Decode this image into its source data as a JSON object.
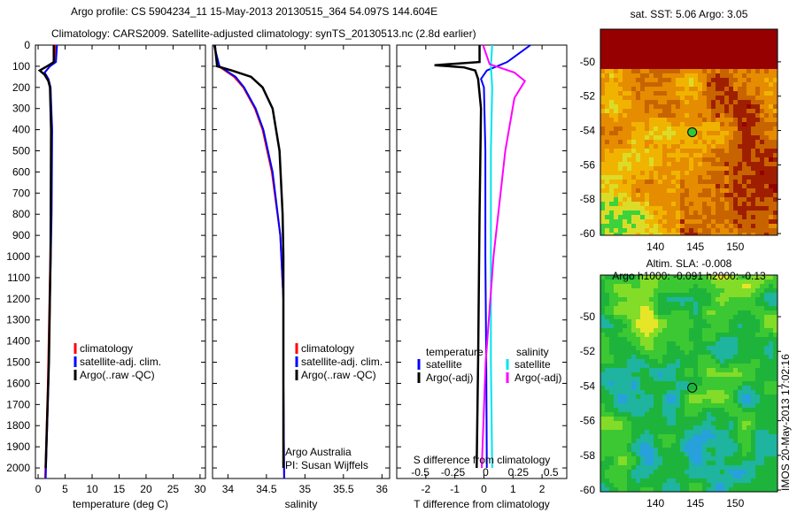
{
  "title_line1": "Argo profile: CS 5904234_11 15-May-2013 20130515_364 54.097S 144.604E",
  "title_line2": "Climatology: CARS2009. Satellite-adjusted climatology: synTS_20130513.nc (2.8d earlier)",
  "stamp": "IMOS 20-May-2013 17:02:16",
  "colors": {
    "climatology": "#ff0000",
    "satellite": "#0000ff",
    "argo": "#000000",
    "sal_satellite": "#00e5ee",
    "sal_argo": "#ff00ff"
  },
  "chart_data": [
    {
      "type": "line",
      "name": "temperature",
      "xlabel": "temperature (deg C)",
      "xlim": [
        -0.5,
        31
      ],
      "ylim": [
        2050,
        0
      ],
      "xticks": [
        0,
        5,
        10,
        15,
        20,
        25,
        30
      ],
      "yticks": [
        0,
        100,
        200,
        300,
        400,
        500,
        600,
        700,
        800,
        900,
        1000,
        1100,
        1200,
        1300,
        1400,
        1500,
        1600,
        1700,
        1800,
        1900,
        2000
      ],
      "legend": [
        "climatology",
        "satellite-adj. clim.",
        "Argo(..raw -QC)"
      ],
      "series": [
        {
          "name": "climatology",
          "color": "#ff0000",
          "depth": [
            0,
            80,
            100,
            130,
            160,
            200,
            400,
            800,
            1200,
            1600,
            2050
          ],
          "values": [
            3.2,
            3.1,
            2.2,
            1.2,
            1.9,
            2.3,
            2.5,
            2.4,
            2.1,
            1.8,
            1.3
          ]
        },
        {
          "name": "satellite-adj. clim.",
          "color": "#0000ff",
          "depth": [
            0,
            80,
            100,
            130,
            160,
            200,
            400,
            800,
            1200,
            1600,
            2050
          ],
          "values": [
            3.5,
            3.3,
            2.2,
            1.2,
            1.9,
            2.3,
            2.6,
            2.5,
            2.2,
            1.9,
            1.4
          ]
        },
        {
          "name": "Argo(..raw -QC)",
          "color": "#000000",
          "depth": [
            0,
            80,
            95,
            120,
            140,
            170,
            200,
            400,
            1000,
            1500,
            2000
          ],
          "values": [
            2.9,
            2.9,
            2.0,
            0.3,
            1.2,
            1.9,
            2.2,
            2.4,
            2.3,
            2.0,
            1.4
          ]
        }
      ]
    },
    {
      "type": "line",
      "name": "salinity",
      "xlabel": "salinity",
      "xlim": [
        33.8,
        36.1
      ],
      "ylim": [
        2050,
        0
      ],
      "xticks": [
        34,
        34.5,
        35,
        35.5,
        36
      ],
      "legend": [
        "climatology",
        "satellite-adj. clim.",
        "Argo(..raw -QC)"
      ],
      "annotation": [
        "Argo Australia",
        "PI: Susan Wijffels"
      ],
      "series": [
        {
          "name": "climatology",
          "color": "#ff0000",
          "depth": [
            0,
            100,
            150,
            200,
            300,
            400,
            600,
            900,
            1200,
            1600,
            2050
          ],
          "values": [
            33.82,
            33.88,
            34.08,
            34.2,
            34.35,
            34.45,
            34.57,
            34.68,
            34.72,
            34.72,
            34.73
          ]
        },
        {
          "name": "satellite-adj. clim.",
          "color": "#0000ff",
          "depth": [
            0,
            100,
            150,
            200,
            300,
            400,
            600,
            900,
            1200,
            1600,
            2050
          ],
          "values": [
            33.82,
            33.89,
            34.1,
            34.21,
            34.36,
            34.46,
            34.58,
            34.68,
            34.72,
            34.72,
            34.73
          ]
        },
        {
          "name": "Argo(..raw -QC)",
          "color": "#000000",
          "depth": [
            0,
            100,
            120,
            150,
            200,
            300,
            500,
            800,
            1000,
            1500,
            2000
          ],
          "values": [
            33.83,
            33.86,
            34.05,
            34.3,
            34.45,
            34.58,
            34.67,
            34.71,
            34.72,
            34.72,
            34.72
          ]
        }
      ]
    },
    {
      "type": "line",
      "name": "difference",
      "xlabel": "T difference from climatology",
      "x2label": "S difference from climatology",
      "xlim": [
        -3.0,
        2.85
      ],
      "x2lim": [
        -0.68,
        0.62
      ],
      "ylim": [
        2050,
        0
      ],
      "xticks": [
        -2,
        -1,
        0,
        1,
        2
      ],
      "x2ticks": [
        "-0.5",
        "-0.25",
        "0",
        "0.25",
        "0.5"
      ],
      "legend_headers": [
        "temperature",
        "salinity"
      ],
      "legend": [
        "satellite",
        "Argo(-adj)",
        "satellite",
        "Argo(-adj)"
      ],
      "series": [
        {
          "name": "T satellite",
          "axis": "T",
          "color": "#0000ff",
          "depth": [
            0,
            40,
            80,
            120,
            160,
            200,
            500,
            1000,
            1500,
            2000
          ],
          "values": [
            1.6,
            1.2,
            0.8,
            0.1,
            -0.1,
            0.0,
            0.05,
            0.05,
            0.08,
            0.1
          ]
        },
        {
          "name": "T Argo(-adj)",
          "axis": "T",
          "color": "#000000",
          "depth": [
            0,
            80,
            95,
            105,
            120,
            160,
            300,
            800,
            1500,
            2000
          ],
          "values": [
            -0.15,
            -0.15,
            -1.7,
            -0.7,
            -0.3,
            -0.2,
            -0.1,
            -0.15,
            -0.2,
            -0.25
          ]
        },
        {
          "name": "S satellite",
          "axis": "S",
          "color": "#00e5ee",
          "depth": [
            0,
            100,
            200,
            500,
            1000,
            1500,
            2000
          ],
          "values": [
            0.05,
            0.04,
            0.05,
            0.04,
            0.04,
            0.04,
            0.05
          ]
        },
        {
          "name": "S Argo(-adj)",
          "axis": "S",
          "color": "#ff00ff",
          "depth": [
            0,
            90,
            130,
            170,
            250,
            500,
            1000,
            1500,
            2000
          ],
          "values": [
            -0.02,
            0.03,
            0.22,
            0.3,
            0.22,
            0.15,
            0.06,
            0.0,
            -0.03
          ]
        }
      ]
    },
    {
      "type": "heatmap",
      "name": "sst-map",
      "title": "sat. SST: 5.06 Argo: 3.05",
      "xlim": [
        133.1,
        155.3
      ],
      "ylim": [
        -60.1,
        -48.1
      ],
      "xticks": [
        140,
        145,
        150
      ],
      "yticks": [
        -50,
        -52,
        -54,
        -56,
        -58,
        -60
      ],
      "marker": [
        144.604,
        -54.097
      ]
    },
    {
      "type": "heatmap",
      "name": "sla-map",
      "title": "Altim. SLA: -0.008",
      "subtitle": "Argo h1000: -0.091 h2000: -0.13",
      "xlim": [
        133.1,
        155.3
      ],
      "ylim": [
        -60.1,
        -47.6
      ],
      "xticks": [
        140,
        145,
        150
      ],
      "yticks": [
        -50,
        -52,
        -54,
        -56,
        -58,
        -60
      ],
      "marker": [
        144.604,
        -54.097
      ]
    }
  ]
}
